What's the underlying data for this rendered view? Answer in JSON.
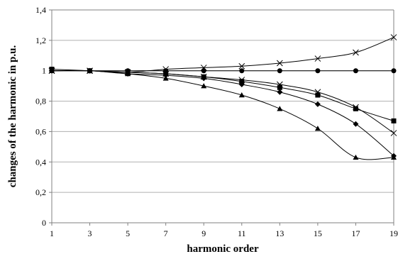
{
  "chart_data": {
    "type": "line",
    "title": "",
    "xlabel": "harmonic order",
    "ylabel": "changes of the harmonic in p.u.",
    "x": [
      1,
      3,
      5,
      7,
      9,
      11,
      13,
      15,
      17,
      19
    ],
    "x_tick_labels": [
      "1",
      "3",
      "5",
      "7",
      "9",
      "11",
      "13",
      "15",
      "17",
      "19"
    ],
    "xlim": [
      1,
      19
    ],
    "ylim": [
      0,
      1.4
    ],
    "y_tick_labels": [
      "0",
      "0,2",
      "0,4",
      "0,6",
      "0,8",
      "1",
      "1,2",
      "1,4"
    ],
    "y_ticks": [
      0,
      0.2,
      0.4,
      0.6,
      0.8,
      1.0,
      1.2,
      1.4
    ],
    "grid": true,
    "legend": "none",
    "series": [
      {
        "marker": "x",
        "values": [
          1.0,
          1.0,
          0.99,
          1.01,
          1.02,
          1.03,
          1.05,
          1.08,
          1.12,
          1.22
        ]
      },
      {
        "marker": "circle",
        "values": [
          1.0,
          1.0,
          1.0,
          1.0,
          1.0,
          1.0,
          1.0,
          1.0,
          1.0,
          1.0
        ]
      },
      {
        "marker": "square",
        "values": [
          1.01,
          1.0,
          0.99,
          0.98,
          0.96,
          0.93,
          0.89,
          0.84,
          0.75,
          0.67
        ]
      },
      {
        "marker": "x",
        "values": [
          1.0,
          1.0,
          0.99,
          0.98,
          0.96,
          0.94,
          0.91,
          0.86,
          0.76,
          0.59
        ]
      },
      {
        "marker": "diamond",
        "values": [
          1.0,
          1.0,
          0.98,
          0.97,
          0.95,
          0.91,
          0.86,
          0.78,
          0.65,
          0.44
        ]
      },
      {
        "marker": "triangle",
        "values": [
          1.0,
          1.0,
          0.98,
          0.95,
          0.9,
          0.84,
          0.75,
          0.62,
          0.43,
          0.43
        ]
      }
    ]
  }
}
